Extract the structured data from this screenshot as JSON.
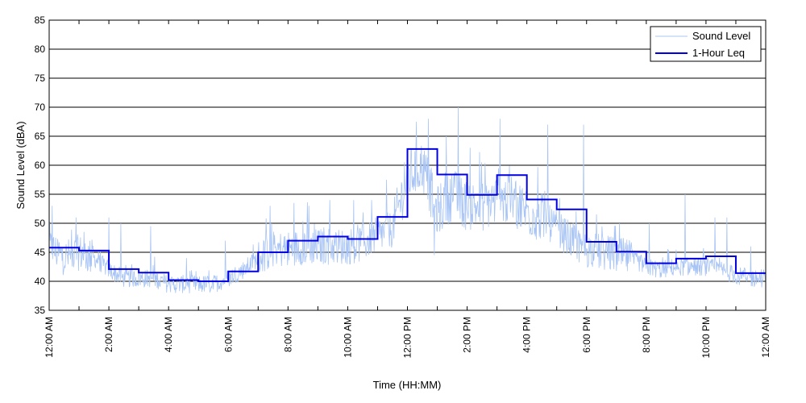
{
  "chart_data": {
    "type": "line",
    "title": "",
    "xlabel": "Time (HH:MM)",
    "ylabel": "Sound Level (dBA)",
    "ylim": [
      35,
      85
    ],
    "yticks": [
      35,
      40,
      45,
      50,
      55,
      60,
      65,
      70,
      75,
      80,
      85
    ],
    "xlim_hours": [
      0,
      24
    ],
    "x_tick_labels": [
      "12:00 AM",
      "2:00 AM",
      "4:00 AM",
      "6:00 AM",
      "8:00 AM",
      "10:00 AM",
      "12:00 PM",
      "2:00 PM",
      "4:00 PM",
      "6:00 PM",
      "8:00 PM",
      "10:00 PM",
      "12:00 AM"
    ],
    "grid": "horizontal",
    "legend_position": "top-right",
    "colors": {
      "sound_level": "#a8c4f5",
      "leq": "#0000e0"
    },
    "series": [
      {
        "name": "Sound Level",
        "style": "thin light blue line",
        "x_unit": "hour",
        "trend": [
          [
            0,
            46
          ],
          [
            0.5,
            44
          ],
          [
            1,
            45
          ],
          [
            1.5,
            44
          ],
          [
            2,
            42
          ],
          [
            2.5,
            40.5
          ],
          [
            3,
            40.5
          ],
          [
            3.5,
            40.5
          ],
          [
            4,
            39.5
          ],
          [
            4.5,
            39.5
          ],
          [
            5,
            39.5
          ],
          [
            5.5,
            39.5
          ],
          [
            6,
            40.5
          ],
          [
            6.5,
            42
          ],
          [
            7,
            44
          ],
          [
            7.5,
            45.5
          ],
          [
            8,
            45.5
          ],
          [
            8.5,
            46
          ],
          [
            9,
            46
          ],
          [
            9.5,
            46
          ],
          [
            10,
            46
          ],
          [
            10.5,
            46.5
          ],
          [
            11,
            48
          ],
          [
            11.5,
            49
          ],
          [
            12,
            58
          ],
          [
            12.5,
            60
          ],
          [
            13,
            52
          ],
          [
            13.5,
            55
          ],
          [
            14,
            53
          ],
          [
            14.5,
            53
          ],
          [
            15,
            54
          ],
          [
            15.5,
            54
          ],
          [
            16,
            52
          ],
          [
            16.5,
            51
          ],
          [
            17,
            49
          ],
          [
            17.5,
            47
          ],
          [
            18,
            45.5
          ],
          [
            18.5,
            45
          ],
          [
            19,
            44.5
          ],
          [
            19.5,
            44
          ],
          [
            20,
            42.5
          ],
          [
            20.5,
            42
          ],
          [
            21,
            42.5
          ],
          [
            21.5,
            42.5
          ],
          [
            22,
            42.5
          ],
          [
            22.5,
            42
          ],
          [
            23,
            41
          ],
          [
            23.5,
            40.5
          ],
          [
            24,
            40.5
          ]
        ],
        "spikes": [
          [
            0.1,
            53
          ],
          [
            0.9,
            51
          ],
          [
            2.0,
            51
          ],
          [
            2.4,
            50
          ],
          [
            3.4,
            49.5
          ],
          [
            4.6,
            44
          ],
          [
            5.9,
            47
          ],
          [
            7.4,
            53
          ],
          [
            8.2,
            53.5
          ],
          [
            8.7,
            53
          ],
          [
            9.4,
            54
          ],
          [
            10.2,
            54
          ],
          [
            10.8,
            54
          ],
          [
            11.3,
            57.5
          ],
          [
            11.9,
            60.5
          ],
          [
            12.3,
            67.5
          ],
          [
            12.7,
            68
          ],
          [
            12.9,
            44.5
          ],
          [
            13.3,
            65
          ],
          [
            13.7,
            70
          ],
          [
            14.1,
            63
          ],
          [
            15.1,
            68
          ],
          [
            15.4,
            57
          ],
          [
            16.7,
            67
          ],
          [
            17.9,
            67
          ],
          [
            19.1,
            50
          ],
          [
            20.1,
            50
          ],
          [
            21.3,
            55
          ],
          [
            22.3,
            51
          ],
          [
            22.7,
            51
          ],
          [
            23.5,
            46
          ]
        ]
      },
      {
        "name": "1-Hour Leq",
        "style": "step line, dark blue",
        "hours": [
          0,
          1,
          2,
          3,
          4,
          5,
          6,
          7,
          8,
          9,
          10,
          11,
          12,
          13,
          14,
          15,
          16,
          17,
          18,
          19,
          20,
          21,
          22,
          23
        ],
        "values": [
          45.8,
          45.3,
          42.1,
          41.5,
          40.2,
          40.0,
          41.7,
          45.0,
          47.0,
          47.7,
          47.3,
          51.1,
          62.8,
          58.4,
          54.9,
          58.3,
          54.1,
          52.4,
          46.8,
          45.1,
          43.1,
          43.9,
          44.3,
          41.4
        ]
      }
    ]
  }
}
